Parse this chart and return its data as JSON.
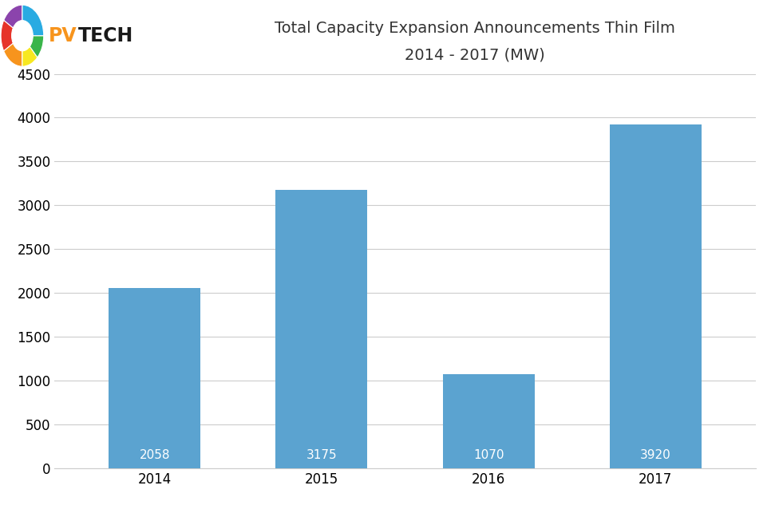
{
  "categories": [
    "2014",
    "2015",
    "2016",
    "2017"
  ],
  "values": [
    2058,
    3175,
    1070,
    3920
  ],
  "bar_color": "#5BA3D0",
  "title_line1": "Total Capacity Expansion Announcements Thin Film",
  "title_line2": "2014 - 2017 (MW)",
  "ylim": [
    0,
    4500
  ],
  "yticks": [
    0,
    500,
    1000,
    1500,
    2000,
    2500,
    3000,
    3500,
    4000,
    4500
  ],
  "title_fontsize": 14,
  "tick_fontsize": 12,
  "annotation_fontsize": 11,
  "background_color": "#FFFFFF",
  "grid_color": "#CCCCCC",
  "bar_width": 0.55,
  "logo_segments": [
    [
      90,
      150,
      "#8B44AC"
    ],
    [
      150,
      210,
      "#E63329"
    ],
    [
      210,
      270,
      "#F7941D"
    ],
    [
      270,
      315,
      "#F7E820"
    ],
    [
      315,
      360,
      "#39B54A"
    ],
    [
      0,
      90,
      "#29ABE2"
    ]
  ],
  "logo_pv_color": "#F7941D",
  "logo_tech_color": "#1A1A1A"
}
